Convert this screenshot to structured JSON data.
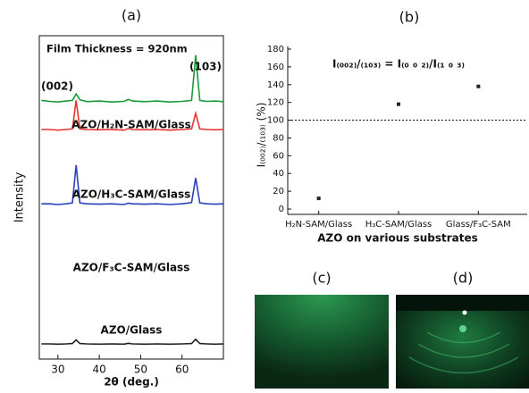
{
  "chart_data": [
    {
      "type": "line",
      "title": "(a)",
      "x_label": "2θ (deg.)",
      "y_label": "Intensity",
      "annotations": [
        "Film Thickness = 920nm",
        "(002)",
        "(103)"
      ],
      "x": [
        26,
        28,
        30,
        32,
        33.5,
        34.4,
        35.3,
        37,
        40,
        43,
        46,
        47,
        48,
        51,
        54,
        57,
        60,
        62.3,
        63.3,
        64.3,
        66,
        68,
        70
      ],
      "series": [
        {
          "name": "AZO/H₂N-SAM/Glass",
          "color": "#1a9a3a",
          "values": [
            80,
            79.7,
            79.5,
            79.8,
            80,
            82,
            80.2,
            79.6,
            79.8,
            79.5,
            79.7,
            80.3,
            79.8,
            79.6,
            79.8,
            79.5,
            79.7,
            80,
            94,
            80,
            79.7,
            79.8,
            79.6
          ]
        },
        {
          "name": "AZO/H₃C-SAM/Glass",
          "color": "#e8322c",
          "values": [
            71,
            71,
            70.8,
            71,
            71.2,
            80,
            71.2,
            71,
            70.9,
            71,
            70.8,
            71.3,
            71,
            70.9,
            71,
            70.8,
            71,
            71.2,
            76,
            71.2,
            71,
            70.9,
            71
          ]
        },
        {
          "name": "AZO/F₃C-SAM/Glass",
          "color": "#2a3fbf",
          "values": [
            48,
            48,
            47.8,
            48,
            48.3,
            60,
            48.3,
            48,
            47.9,
            48,
            47.8,
            48.2,
            48,
            47.9,
            48,
            47.8,
            48,
            48.4,
            56,
            48.3,
            48,
            47.9,
            48
          ]
        },
        {
          "name": "AZO/Glass",
          "color": "#222222",
          "values": [
            4.7,
            4.7,
            4.6,
            4.7,
            4.8,
            5.9,
            4.8,
            4.7,
            4.6,
            4.7,
            4.6,
            4.9,
            4.7,
            4.6,
            4.7,
            4.6,
            4.7,
            4.8,
            6.1,
            4.8,
            4.7,
            4.6,
            4.7
          ]
        }
      ],
      "xlim": [
        25.5,
        70
      ],
      "xticks": [
        30,
        40,
        50,
        60
      ],
      "ylim": [
        0,
        100
      ]
    },
    {
      "type": "scatter",
      "title": "(b)",
      "x_label": "AZO on various substrates",
      "y_label": "I₍₀₀₂₎/₍₁₀₃₎ (%)",
      "annotation": "I₍₀₀₂₎/₍₁₀₃₎ = I₍₀ ₀ ₂₎/I₍₁ ₀ ₃₎",
      "categories": [
        "H₂N-SAM/Glass",
        "H₃C-SAM/Glass",
        "Glass/F₃C-SAM"
      ],
      "values": [
        12,
        118,
        138
      ],
      "color": "#222222",
      "reference_line": 100,
      "ylim": [
        -6,
        183
      ],
      "yticks": [
        0,
        20,
        40,
        60,
        80,
        100,
        120,
        140,
        160,
        180
      ]
    },
    {
      "type": "image",
      "title": "(c)"
    },
    {
      "type": "image",
      "title": "(d)"
    }
  ]
}
